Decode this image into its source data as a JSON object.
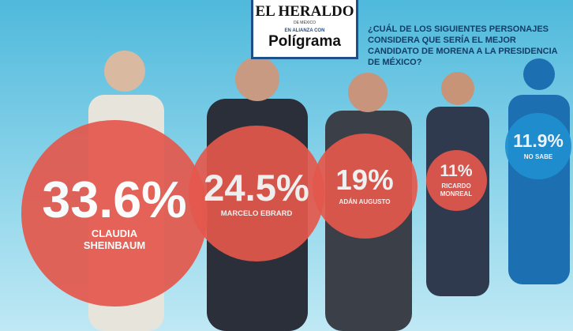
{
  "header": {
    "brand": "EL HERALDO",
    "brand_sub": "DE MÉXICO",
    "alliance": "EN ALIANZA CON",
    "partner": "Polígrama"
  },
  "chart_data": {
    "type": "bubble",
    "title": "¿CUÁL DE LOS SIGUIENTES PERSONAJES CONSIDERA QUE SERÍA EL MEJOR CANDIDATO DE MORENA A LA PRESIDENCIA DE MÉXICO?",
    "categories": [
      "CLAUDIA SHEINBAUM",
      "MARCELO EBRARD",
      "ADÁN AUGUSTO",
      "RICARDO MONREAL",
      "NO SABE"
    ],
    "values": [
      33.6,
      24.5,
      19,
      11,
      11.9
    ],
    "value_labels": [
      "33.6%",
      "24.5%",
      "19%",
      "11%",
      "11.9%"
    ],
    "colors": [
      "#e4584c",
      "#e4584c",
      "#e4584c",
      "#e4584c",
      "#1f8fd0"
    ]
  }
}
